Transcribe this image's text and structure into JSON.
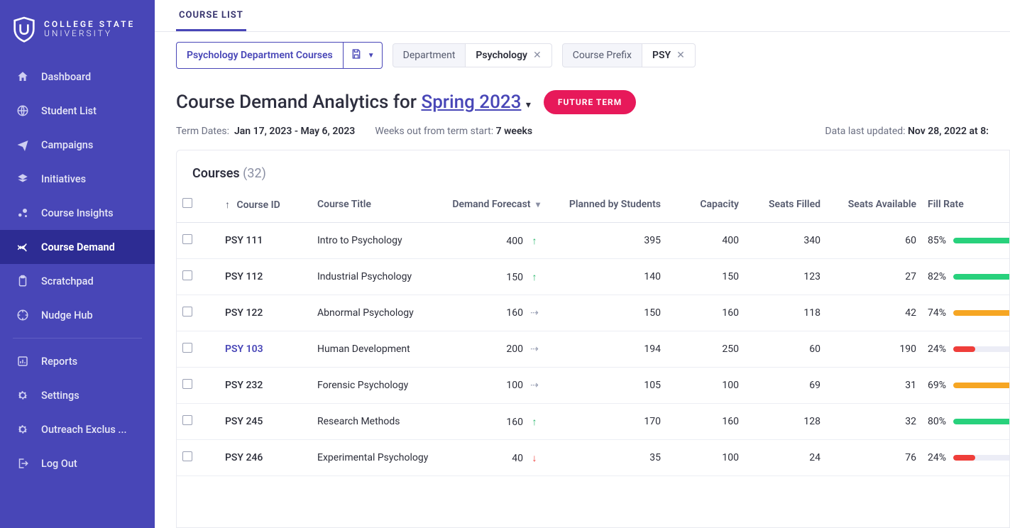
{
  "brand": {
    "line1": "COLLEGE STATE",
    "line2": "UNIVERSITY"
  },
  "sidebar": {
    "items": [
      {
        "label": "Dashboard",
        "icon": "home"
      },
      {
        "label": "Student List",
        "icon": "globe"
      },
      {
        "label": "Campaigns",
        "icon": "send"
      },
      {
        "label": "Initiatives",
        "icon": "layers"
      },
      {
        "label": "Course Insights",
        "icon": "bubbles"
      },
      {
        "label": "Course Demand",
        "icon": "trend",
        "active": true
      },
      {
        "label": "Scratchpad",
        "icon": "clipboard"
      },
      {
        "label": "Nudge Hub",
        "icon": "soccer"
      }
    ],
    "bottom": [
      {
        "label": "Reports",
        "icon": "chart"
      },
      {
        "label": "Settings",
        "icon": "gear"
      },
      {
        "label": "Outreach Exclus ...",
        "icon": "gear"
      },
      {
        "label": "Log Out",
        "icon": "logout"
      }
    ]
  },
  "tab": "COURSE LIST",
  "filters": {
    "saved_name": "Psychology Department Courses",
    "dept_label": "Department",
    "dept_value": "Psychology",
    "prefix_label": "Course Prefix",
    "prefix_value": "PSY"
  },
  "heading": {
    "prefix": "Course Demand Analytics for",
    "term": "Spring 2023",
    "pill": "FUTURE TERM"
  },
  "meta": {
    "term_dates_label": "Term Dates:",
    "term_dates_value": "Jan 17, 2023 -  May 6, 2023",
    "weeks_label": "Weeks out from term start:",
    "weeks_value": "7 weeks",
    "updated_label": "Data last updated:",
    "updated_value": "Nov 28, 2022 at 8:"
  },
  "table": {
    "title": "Courses",
    "count": "(32)",
    "columns": {
      "course_id": "Course ID",
      "title": "Course Title",
      "forecast": "Demand Forecast",
      "planned": "Planned by Students",
      "capacity": "Capacity",
      "filled": "Seats Filled",
      "available": "Seats Available",
      "fill_rate": "Fill Rate"
    },
    "fill_colors": {
      "high": "#28d17c",
      "mid": "#f6a623",
      "low": "#ef3e3a",
      "track": "#ecedf6"
    },
    "rows": [
      {
        "id": "PSY 111",
        "title": "Intro to Psychology",
        "forecast": 400,
        "trend": "up",
        "planned": 395,
        "capacity": 400,
        "filled": 340,
        "available": 60,
        "fill_pct": 85,
        "fill_band": "high"
      },
      {
        "id": "PSY 112",
        "title": "Industrial Psychology",
        "forecast": 150,
        "trend": "up",
        "planned": 140,
        "capacity": 150,
        "filled": 123,
        "available": 27,
        "fill_pct": 82,
        "fill_band": "high"
      },
      {
        "id": "PSY 122",
        "title": "Abnormal Psychology",
        "forecast": 160,
        "trend": "flat",
        "planned": 150,
        "capacity": 160,
        "filled": 118,
        "available": 42,
        "fill_pct": 74,
        "fill_band": "mid"
      },
      {
        "id": "PSY 103",
        "title": "Human Development",
        "forecast": 200,
        "trend": "flat",
        "planned": 194,
        "capacity": 250,
        "filled": 60,
        "available": 190,
        "fill_pct": 24,
        "fill_band": "low",
        "highlight": true
      },
      {
        "id": "PSY 232",
        "title": "Forensic Psychology",
        "forecast": 100,
        "trend": "flat",
        "planned": 105,
        "capacity": 100,
        "filled": 69,
        "available": 31,
        "fill_pct": 69,
        "fill_band": "mid"
      },
      {
        "id": "PSY 245",
        "title": "Research Methods",
        "forecast": 160,
        "trend": "up",
        "planned": 170,
        "capacity": 160,
        "filled": 128,
        "available": 32,
        "fill_pct": 80,
        "fill_band": "high"
      },
      {
        "id": "PSY 246",
        "title": "Experimental Psychology",
        "forecast": 40,
        "trend": "down",
        "planned": 35,
        "capacity": 100,
        "filled": 24,
        "available": 76,
        "fill_pct": 24,
        "fill_band": "low"
      }
    ]
  }
}
